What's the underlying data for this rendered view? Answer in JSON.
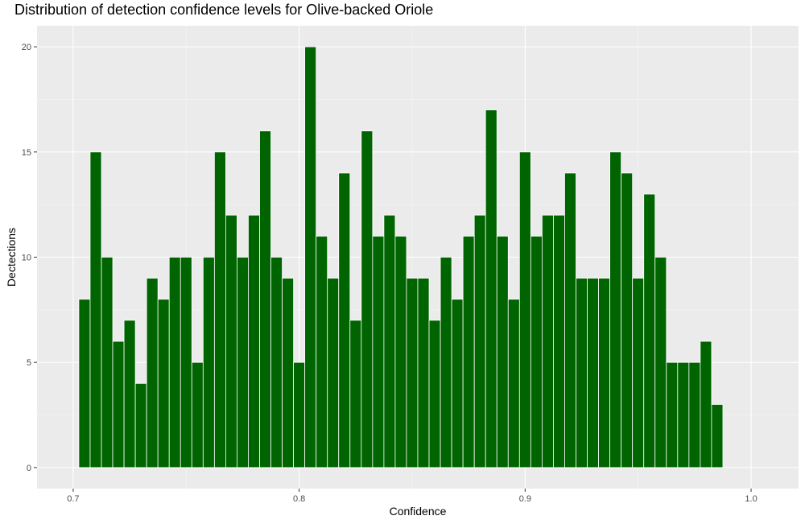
{
  "colors": {
    "panel_background": "#EBEBEB",
    "grid_major": "#FFFFFF",
    "grid_minor": "#F5F5F5",
    "bar_fill": "#006400",
    "bar_outline": "#FFFFFF",
    "tick_text": "#4D4D4D"
  },
  "chart_data": {
    "type": "bar",
    "title": "Distribution of detection confidence levels for Olive-backed Oriole",
    "xlabel": "Confidence",
    "ylabel": "Dectections",
    "xlim": [
      0.684,
      1.021
    ],
    "ylim": [
      -1,
      21
    ],
    "x_ticks": [
      {
        "value": 0.7,
        "label": "0.7"
      },
      {
        "value": 0.8,
        "label": "0.8"
      },
      {
        "value": 0.9,
        "label": "0.9"
      },
      {
        "value": 1.0,
        "label": "1.0"
      }
    ],
    "y_ticks": [
      {
        "value": 0,
        "label": "0"
      },
      {
        "value": 5,
        "label": "5"
      },
      {
        "value": 10,
        "label": "10"
      },
      {
        "value": 15,
        "label": "15"
      },
      {
        "value": 20,
        "label": "20"
      }
    ],
    "grid": true,
    "legend": "none",
    "bin_width": 0.005,
    "bin_centers": [
      0.705,
      0.71,
      0.715,
      0.72,
      0.725,
      0.73,
      0.735,
      0.74,
      0.745,
      0.75,
      0.755,
      0.76,
      0.765,
      0.77,
      0.775,
      0.78,
      0.785,
      0.79,
      0.795,
      0.8,
      0.805,
      0.81,
      0.815,
      0.82,
      0.825,
      0.83,
      0.835,
      0.84,
      0.845,
      0.85,
      0.855,
      0.86,
      0.865,
      0.87,
      0.875,
      0.88,
      0.885,
      0.89,
      0.895,
      0.9,
      0.905,
      0.91,
      0.915,
      0.92,
      0.925,
      0.93,
      0.935,
      0.94,
      0.945,
      0.95,
      0.955,
      0.96,
      0.965,
      0.97,
      0.975,
      0.98,
      0.985
    ],
    "values": [
      8,
      15,
      10,
      6,
      7,
      4,
      9,
      8,
      10,
      10,
      5,
      10,
      15,
      12,
      10,
      12,
      16,
      10,
      9,
      5,
      20,
      11,
      9,
      14,
      7,
      16,
      11,
      12,
      11,
      9,
      9,
      7,
      10,
      8,
      11,
      12,
      17,
      11,
      8,
      15,
      11,
      12,
      12,
      14,
      9,
      9,
      9,
      15,
      14,
      9,
      13,
      10,
      5,
      5,
      5,
      6,
      3
    ]
  }
}
